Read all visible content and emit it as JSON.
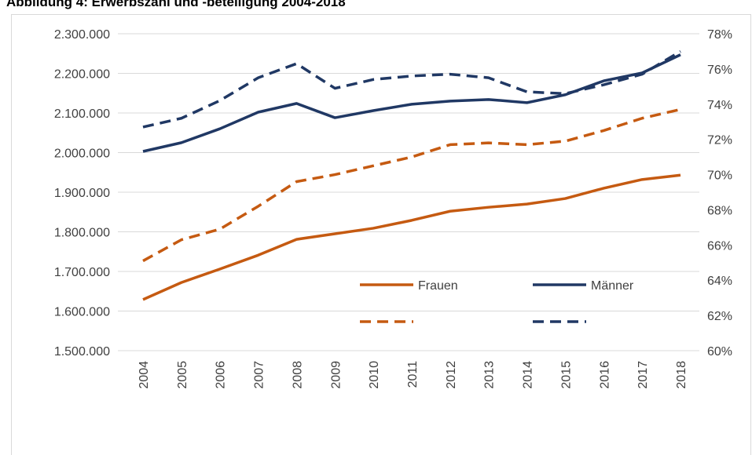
{
  "chart_data": {
    "type": "line",
    "title": "Abbildung 4: Erwerbszahl und -beteiligung 2004-2018",
    "categories": [
      "2004",
      "2005",
      "2006",
      "2007",
      "2008",
      "2009",
      "2010",
      "2011",
      "2012",
      "2013",
      "2014",
      "2015",
      "2016",
      "2017",
      "2018"
    ],
    "series": [
      {
        "name": "Frauen",
        "color": "#c55a11",
        "dash": false,
        "axis": "y",
        "values": [
          1629000,
          1672000,
          1706000,
          1741000,
          1781000,
          1795000,
          1809000,
          1829000,
          1852000,
          1862000,
          1870000,
          1884000,
          1910000,
          1932000,
          1943000
        ]
      },
      {
        "name": "Männer",
        "color": "#203864",
        "dash": false,
        "axis": "y",
        "values": [
          2003000,
          2025000,
          2060000,
          2102000,
          2124000,
          2088000,
          2106000,
          2122000,
          2130000,
          2134000,
          2126000,
          2146000,
          2181000,
          2201000,
          2247000
        ]
      },
      {
        "color": "#c55a11",
        "dash": true,
        "axis": "y2",
        "values": [
          65.1,
          66.3,
          66.9,
          68.2,
          69.6,
          70.0,
          70.5,
          71.0,
          71.7,
          71.8,
          71.7,
          71.9,
          72.5,
          73.2,
          73.7
        ]
      },
      {
        "color": "#203864",
        "dash": true,
        "axis": "y2",
        "values": [
          72.7,
          73.2,
          74.2,
          75.5,
          76.3,
          74.9,
          75.4,
          75.6,
          75.7,
          75.5,
          74.7,
          74.6,
          75.1,
          75.7,
          77.0
        ]
      }
    ],
    "ylim": [
      1500000,
      2300000
    ],
    "yticks": [
      {
        "value": 1500000,
        "label": "1.500.000"
      },
      {
        "value": 1600000,
        "label": "1.600.000"
      },
      {
        "value": 1700000,
        "label": "1.700.000"
      },
      {
        "value": 1800000,
        "label": "1.800.000"
      },
      {
        "value": 1900000,
        "label": "1.900.000"
      },
      {
        "value": 2000000,
        "label": "2.000.000"
      },
      {
        "value": 2100000,
        "label": "2.100.000"
      },
      {
        "value": 2200000,
        "label": "2.200.000"
      },
      {
        "value": 2300000,
        "label": "2.300.000"
      }
    ],
    "y2lim": [
      60,
      78
    ],
    "y2ticks": [
      {
        "value": 60,
        "label": "60%"
      },
      {
        "value": 62,
        "label": "62%"
      },
      {
        "value": 64,
        "label": "64%"
      },
      {
        "value": 66,
        "label": "66%"
      },
      {
        "value": 68,
        "label": "68%"
      },
      {
        "value": 70,
        "label": "70%"
      },
      {
        "value": 72,
        "label": "72%"
      },
      {
        "value": 74,
        "label": "74%"
      },
      {
        "value": 76,
        "label": "76%"
      },
      {
        "value": 78,
        "label": "78%"
      }
    ],
    "grid": true
  }
}
